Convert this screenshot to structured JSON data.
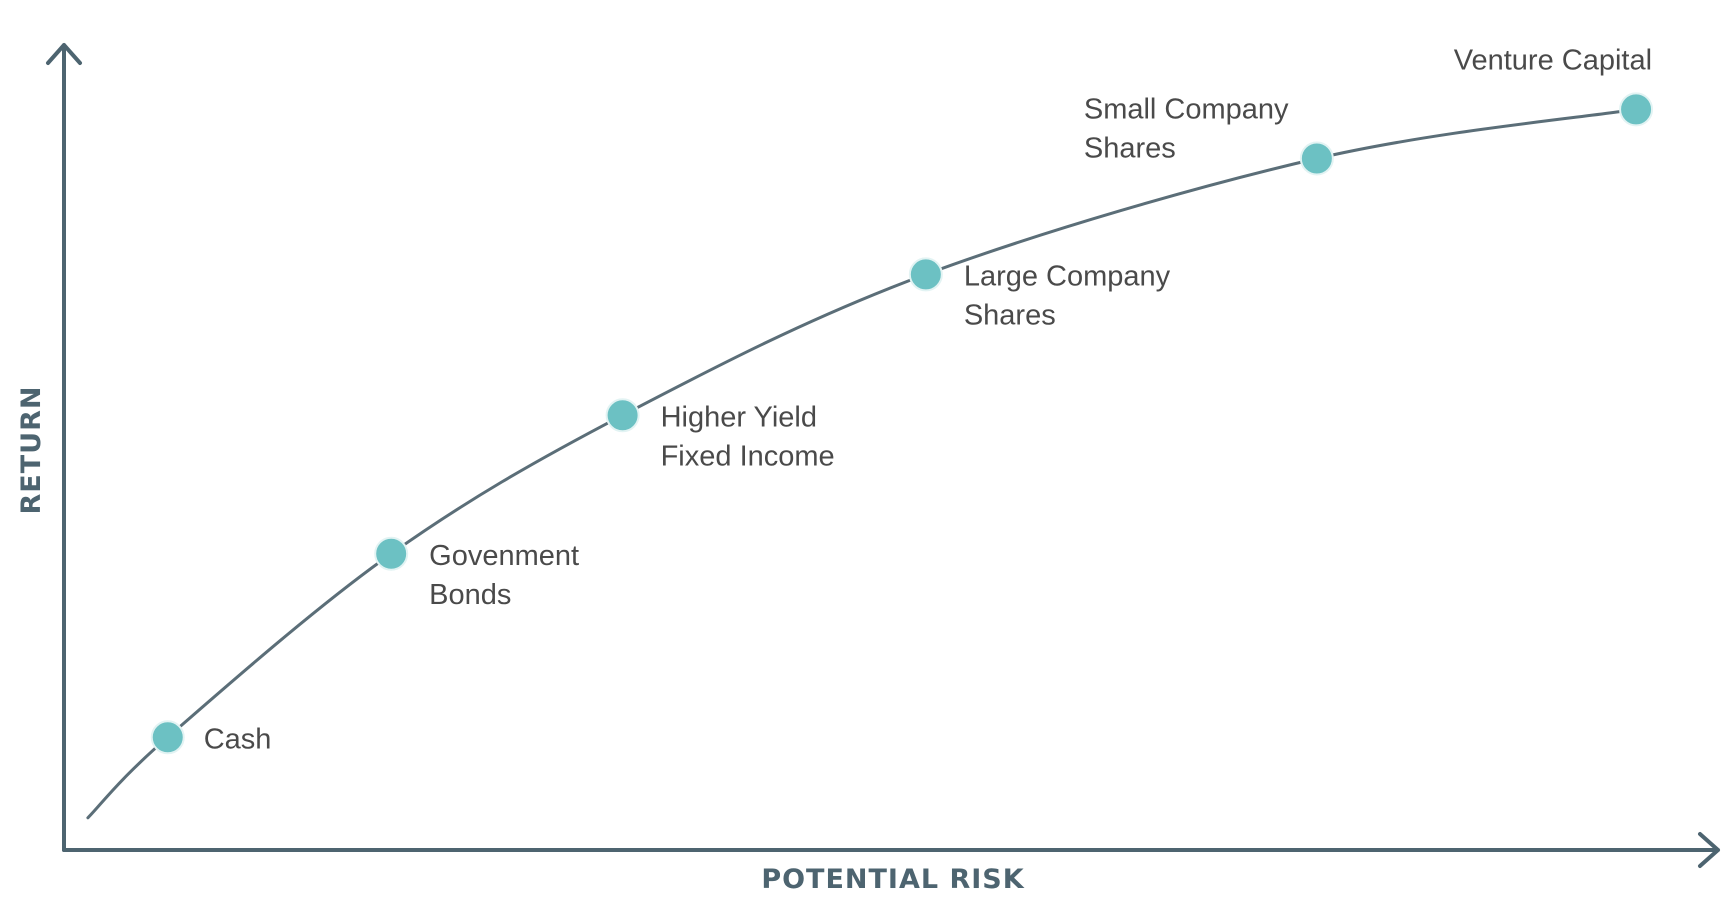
{
  "chart_data": {
    "type": "line",
    "title": "",
    "xlabel": "POTENTIAL RISK",
    "ylabel": "RETURN",
    "grid": false,
    "legend": "none",
    "xlim": [
      0,
      10
    ],
    "ylim": [
      0,
      10
    ],
    "curve": {
      "x": [
        0.15,
        0.65,
        2.05,
        3.5,
        5.4,
        7.85,
        9.85
      ],
      "y": [
        0.4,
        1.4,
        3.68,
        5.4,
        7.15,
        8.59,
        9.2
      ]
    },
    "points": [
      {
        "label": [
          "Cash"
        ],
        "x": 0.65,
        "y": 1.4
      },
      {
        "label": [
          "Govenment",
          "Bonds"
        ],
        "x": 2.05,
        "y": 3.68
      },
      {
        "label": [
          "Higher Yield",
          "Fixed Income"
        ],
        "x": 3.5,
        "y": 5.4
      },
      {
        "label": [
          "Large Company",
          "Shares"
        ],
        "x": 5.4,
        "y": 7.15
      },
      {
        "label": [
          "Small Company",
          "Shares"
        ],
        "x": 7.85,
        "y": 8.59
      },
      {
        "label": [
          "Venture Capital"
        ],
        "x": 9.85,
        "y": 9.2
      }
    ],
    "colors": {
      "axis": "#4d6470",
      "curve": "#5b6e78",
      "point": "#6cc1c3",
      "label": "#4a4a4a"
    }
  }
}
